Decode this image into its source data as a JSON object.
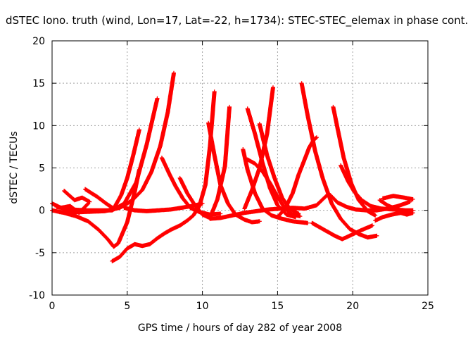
{
  "chart_data": {
    "type": "scatter",
    "title": "dSTEC Iono. truth (wind, Lon=17, Lat=-22, h=1734): STEC-STEC_elemax in phase cont.",
    "xlabel": "GPS time / hours of day 282 of year 2008",
    "ylabel": "dSTEC  / TECUs",
    "xlim": [
      0,
      25
    ],
    "ylim": [
      -10,
      20
    ],
    "xticks": [
      0,
      5,
      10,
      15,
      20,
      25
    ],
    "yticks": [
      -10,
      -5,
      0,
      5,
      10,
      15,
      20
    ],
    "xtick_labels": [
      "0",
      "5",
      "10",
      "15",
      "20",
      "25"
    ],
    "ytick_labels": [
      "-10",
      "-5",
      "0",
      "5",
      "10",
      "15",
      "20"
    ],
    "grid": true,
    "marker": "plus",
    "color": "#ff0000",
    "series": [
      {
        "x": [
          0.0,
          0.8,
          1.6,
          2.4,
          3.1,
          3.7,
          4.1,
          4.4,
          5.0,
          5.5,
          5.8
        ],
        "y": [
          0.0,
          -0.3,
          -0.7,
          -1.3,
          -2.3,
          -3.4,
          -4.3,
          -3.9,
          -1.4,
          2.2,
          4.8
        ]
      },
      {
        "x": [
          0.3,
          1.2,
          2.2,
          3.2,
          4.0,
          4.8,
          5.6,
          6.3,
          7.0
        ],
        "y": [
          0.4,
          0.1,
          0.0,
          0.0,
          0.0,
          0.8,
          3.3,
          7.8,
          13.2
        ]
      },
      {
        "x": [
          0.5,
          2.0,
          3.5,
          4.5,
          5.0,
          5.4,
          6.0,
          6.6,
          7.2,
          7.7,
          8.1
        ],
        "y": [
          -0.2,
          -0.2,
          -0.1,
          0.3,
          0.8,
          1.3,
          2.4,
          4.5,
          7.6,
          11.6,
          16.2
        ]
      },
      {
        "x": [
          2.2,
          3.0,
          3.6,
          4.1,
          4.6,
          5.0,
          5.4,
          5.8
        ],
        "y": [
          2.5,
          1.6,
          0.8,
          0.2,
          1.8,
          3.8,
          6.5,
          9.5
        ]
      },
      {
        "x": [
          4.0,
          4.5,
          5.0,
          5.5,
          6.0,
          6.5,
          7.0,
          7.5,
          8.0,
          8.5,
          9.0,
          9.4,
          9.8,
          10.2,
          10.5,
          10.8
        ],
        "y": [
          -6.0,
          -5.5,
          -4.5,
          -4.0,
          -4.2,
          -4.0,
          -3.3,
          -2.7,
          -2.2,
          -1.8,
          -1.2,
          -0.6,
          0.5,
          3.0,
          7.5,
          14.0
        ]
      },
      {
        "x": [
          7.3,
          7.8,
          8.2,
          8.7,
          9.2,
          9.8,
          10.5,
          11.2
        ],
        "y": [
          6.2,
          4.3,
          2.9,
          1.4,
          0.3,
          -0.2,
          -0.5,
          -0.4
        ]
      },
      {
        "x": [
          8.5,
          9.0,
          9.5,
          10.0,
          10.5,
          11.0,
          11.5,
          11.8
        ],
        "y": [
          3.8,
          2.0,
          0.6,
          -0.5,
          -0.9,
          1.3,
          5.2,
          12.2
        ]
      },
      {
        "x": [
          10.4,
          10.8,
          11.2,
          11.7,
          12.2,
          12.8,
          13.3,
          13.8
        ],
        "y": [
          10.3,
          6.5,
          3.0,
          0.8,
          -0.5,
          -1.1,
          -1.4,
          -1.3
        ]
      },
      {
        "x": [
          12.7,
          13.0,
          13.5,
          14.0,
          14.6,
          15.3,
          16.0,
          17.0
        ],
        "y": [
          7.2,
          4.8,
          2.0,
          0.2,
          -0.6,
          -1.0,
          -1.3,
          -1.5
        ]
      },
      {
        "x": [
          13.0,
          13.5,
          14.0,
          14.5,
          15.0,
          15.6,
          16.2
        ],
        "y": [
          12.0,
          9.0,
          5.6,
          2.6,
          0.6,
          -0.5,
          -0.8
        ]
      },
      {
        "x": [
          13.0,
          13.5,
          14.0,
          14.5,
          15.0,
          15.5,
          16.0,
          16.5
        ],
        "y": [
          6.0,
          5.5,
          4.6,
          3.2,
          1.6,
          0.2,
          -0.5,
          -0.7
        ]
      },
      {
        "x": [
          12.8,
          13.3,
          13.8,
          14.3,
          14.7
        ],
        "y": [
          0.2,
          2.4,
          5.0,
          9.0,
          14.5
        ]
      },
      {
        "x": [
          13.8,
          14.3,
          14.8,
          15.3,
          15.8,
          16.4
        ],
        "y": [
          10.2,
          6.5,
          3.8,
          1.5,
          0.2,
          -0.4
        ]
      },
      {
        "x": [
          15.0,
          15.5,
          16.0,
          16.4,
          16.8,
          17.1,
          17.4,
          17.6
        ],
        "y": [
          -0.8,
          0.2,
          2.0,
          4.2,
          6.0,
          7.4,
          8.3,
          8.6
        ]
      },
      {
        "x": [
          16.6,
          17.0,
          17.5,
          18.0,
          18.6,
          19.2,
          19.8,
          20.4,
          21.0,
          21.6
        ],
        "y": [
          15.0,
          11.2,
          7.0,
          3.8,
          0.8,
          -1.0,
          -2.2,
          -2.8,
          -3.2,
          -3.0
        ]
      },
      {
        "x": [
          18.7,
          19.0,
          19.4,
          19.9,
          20.4,
          21.0,
          21.5
        ],
        "y": [
          12.2,
          9.6,
          6.2,
          3.2,
          1.2,
          -0.1,
          -0.6
        ]
      },
      {
        "x": [
          17.3,
          17.8,
          18.3,
          18.8,
          19.3,
          19.8,
          20.5,
          21.3
        ],
        "y": [
          -1.5,
          -2.0,
          -2.5,
          -3.0,
          -3.4,
          -3.0,
          -2.4,
          -1.8
        ]
      },
      {
        "x": [
          18.5,
          19.0,
          19.6,
          20.2,
          20.9,
          21.6,
          22.3,
          23.0,
          23.8
        ],
        "y": [
          1.8,
          0.9,
          0.4,
          0.1,
          0.0,
          0.0,
          0.2,
          0.5,
          1.0
        ]
      },
      {
        "x": [
          19.2,
          19.7,
          20.1,
          20.6,
          21.2,
          21.9,
          22.7,
          23.5,
          24.0
        ],
        "y": [
          5.3,
          3.4,
          2.2,
          1.2,
          0.5,
          0.2,
          0.1,
          0.0,
          0.0
        ]
      },
      {
        "x": [
          21.8,
          22.3,
          22.8,
          23.2,
          23.6,
          24.0
        ],
        "y": [
          1.2,
          0.6,
          0.2,
          -0.3,
          -0.5,
          -0.3
        ]
      },
      {
        "x": [
          21.5,
          22.0,
          22.6,
          23.2,
          23.8
        ],
        "y": [
          -1.2,
          -0.8,
          -0.5,
          -0.3,
          -0.1
        ]
      },
      {
        "x": [
          0.0,
          0.6,
          1.2,
          1.8,
          2.4
        ],
        "y": [
          0.8,
          0.3,
          0.5,
          -0.3,
          0.8
        ]
      },
      {
        "x": [
          0.8,
          1.5,
          2.0,
          2.5
        ],
        "y": [
          2.3,
          1.2,
          1.5,
          1.0
        ]
      },
      {
        "x": [
          4.8,
          5.5,
          6.3,
          7.1,
          7.9,
          8.6,
          9.3,
          10.0
        ],
        "y": [
          0.3,
          0.0,
          -0.1,
          0.0,
          0.1,
          0.3,
          0.5,
          0.8
        ]
      },
      {
        "x": [
          10.5,
          11.2,
          12.0,
          12.8,
          13.6,
          14.4,
          15.2,
          16.0,
          16.8,
          17.6,
          18.3
        ],
        "y": [
          -1.0,
          -0.9,
          -0.6,
          -0.3,
          -0.1,
          0.1,
          0.2,
          0.3,
          0.2,
          0.6,
          1.8
        ]
      },
      {
        "x": [
          22.0,
          22.7,
          23.4,
          24.0
        ],
        "y": [
          1.4,
          1.7,
          1.5,
          1.3
        ]
      }
    ]
  }
}
